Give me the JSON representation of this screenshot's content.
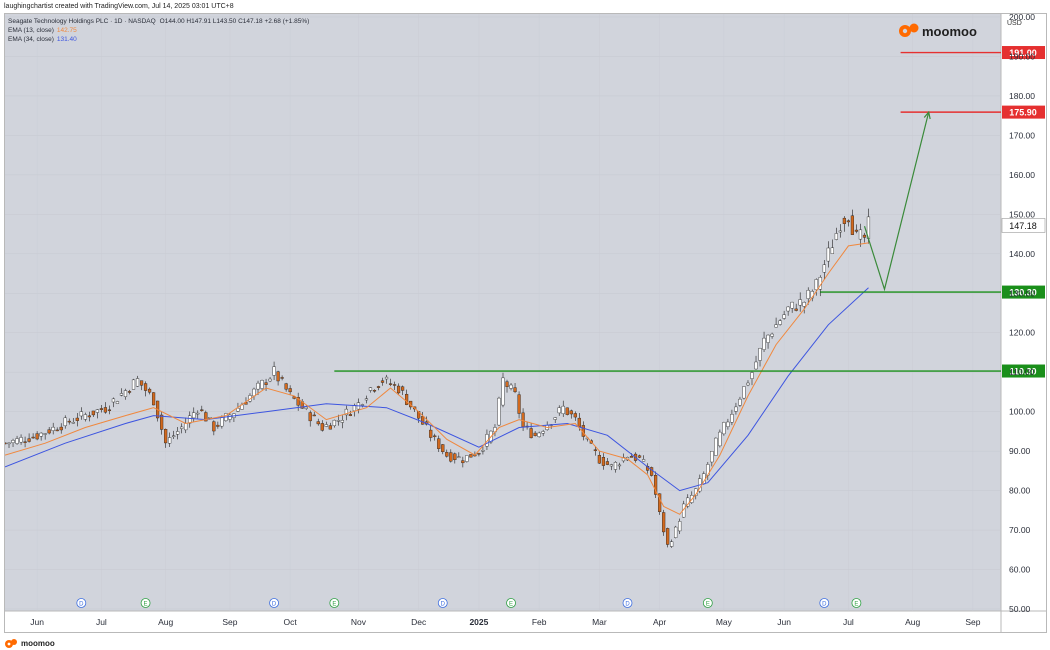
{
  "caption": "laughingchartist created with TradingView.com, Jul 14, 2025 03:01 UTC+8",
  "header": {
    "symbol_line": "Seagate Technology Holdings PLC · 1D · NASDAQ",
    "ohlc": "O144.00  H147.91  L143.50  C147.18  +2.68 (+1.85%)",
    "ema13_label": "EMA (13, close)",
    "ema13_value": "142.75",
    "ema34_label": "EMA (34, close)",
    "ema34_value": "131.40"
  },
  "currency": "USD",
  "brand": "moomoo",
  "bottom_brand": "moomoo",
  "colors": {
    "background": "#d1d4dc",
    "up": "#ffffff",
    "down": "#d2691e",
    "ema13": "#f0883e",
    "ema34": "#3d55e0",
    "support": "#1a8f1a",
    "target": "#e53030",
    "arrow": "#3a8a3a",
    "current_price_bg": "#ffffff"
  },
  "chart_data": {
    "type": "candlestick",
    "ylim": [
      50,
      200
    ],
    "y_ticks": [
      "200.00",
      "190.00",
      "180.00",
      "170.00",
      "160.00",
      "150.00",
      "140.00",
      "130.00",
      "120.00",
      "110.00",
      "100.00",
      "90.00",
      "80.00",
      "70.00",
      "60.00",
      "50.00"
    ],
    "x_ticks": [
      "Jun",
      "Jul",
      "Aug",
      "Sep",
      "Oct",
      "Nov",
      "Dec",
      "2025",
      "Feb",
      "Mar",
      "Apr",
      "May",
      "Jun",
      "Jul",
      "Aug",
      "Sep"
    ],
    "last_price": 147.18,
    "last_price_label": "147.18",
    "levels": [
      {
        "value": 191.0,
        "label": "191.00",
        "kind": "target"
      },
      {
        "value": 175.9,
        "label": "175.90",
        "kind": "target"
      },
      {
        "value": 130.3,
        "label": "130.30",
        "kind": "support"
      },
      {
        "value": 110.3,
        "label": "110.30",
        "kind": "support"
      }
    ],
    "price_path": [
      [
        0,
        92
      ],
      [
        8,
        94
      ],
      [
        17,
        98
      ],
      [
        25,
        101
      ],
      [
        33,
        108
      ],
      [
        37,
        103
      ],
      [
        40,
        92
      ],
      [
        44,
        96
      ],
      [
        48,
        101
      ],
      [
        52,
        96
      ],
      [
        57,
        100
      ],
      [
        62,
        105
      ],
      [
        67,
        110
      ],
      [
        71,
        104
      ],
      [
        75,
        100
      ],
      [
        79,
        96
      ],
      [
        83,
        98
      ],
      [
        88,
        102
      ],
      [
        91,
        106
      ],
      [
        94,
        108
      ],
      [
        98,
        106
      ],
      [
        102,
        100
      ],
      [
        106,
        94
      ],
      [
        110,
        89
      ],
      [
        114,
        88
      ],
      [
        118,
        90
      ],
      [
        122,
        96
      ],
      [
        124,
        108
      ],
      [
        127,
        104
      ],
      [
        129,
        96
      ],
      [
        132,
        94
      ],
      [
        136,
        98
      ],
      [
        139,
        101
      ],
      [
        142,
        98
      ],
      [
        145,
        92
      ],
      [
        148,
        88
      ],
      [
        151,
        86
      ],
      [
        155,
        89
      ],
      [
        158,
        88
      ],
      [
        161,
        84
      ],
      [
        163,
        74
      ],
      [
        165,
        66
      ],
      [
        167,
        70
      ],
      [
        169,
        76
      ],
      [
        172,
        80
      ],
      [
        174,
        84
      ],
      [
        177,
        92
      ],
      [
        180,
        98
      ],
      [
        183,
        104
      ],
      [
        186,
        110
      ],
      [
        189,
        118
      ],
      [
        192,
        122
      ],
      [
        195,
        126
      ],
      [
        199,
        128
      ],
      [
        202,
        132
      ],
      [
        205,
        140
      ],
      [
        208,
        148
      ],
      [
        210,
        150
      ],
      [
        212,
        144
      ],
      [
        214,
        144
      ],
      [
        215,
        147.18
      ]
    ],
    "ema13_path": [
      [
        0,
        89
      ],
      [
        10,
        92
      ],
      [
        20,
        96
      ],
      [
        30,
        99
      ],
      [
        37,
        101
      ],
      [
        45,
        97
      ],
      [
        55,
        99
      ],
      [
        65,
        106
      ],
      [
        72,
        104
      ],
      [
        80,
        98
      ],
      [
        90,
        101
      ],
      [
        96,
        106
      ],
      [
        103,
        100
      ],
      [
        110,
        93
      ],
      [
        117,
        89
      ],
      [
        123,
        96
      ],
      [
        128,
        98
      ],
      [
        135,
        96
      ],
      [
        142,
        97
      ],
      [
        148,
        90
      ],
      [
        155,
        88
      ],
      [
        160,
        84
      ],
      [
        164,
        76
      ],
      [
        168,
        74
      ],
      [
        172,
        79
      ],
      [
        178,
        89
      ],
      [
        185,
        104
      ],
      [
        192,
        117
      ],
      [
        199,
        126
      ],
      [
        205,
        135
      ],
      [
        210,
        142
      ],
      [
        215,
        142.75
      ]
    ],
    "ema34_path": [
      [
        0,
        86
      ],
      [
        15,
        92
      ],
      [
        30,
        97
      ],
      [
        37,
        99
      ],
      [
        50,
        98
      ],
      [
        65,
        100
      ],
      [
        80,
        102
      ],
      [
        95,
        101
      ],
      [
        105,
        97
      ],
      [
        118,
        91
      ],
      [
        128,
        96
      ],
      [
        140,
        97
      ],
      [
        150,
        94
      ],
      [
        160,
        86
      ],
      [
        168,
        80
      ],
      [
        175,
        82
      ],
      [
        185,
        94
      ],
      [
        195,
        109
      ],
      [
        205,
        122
      ],
      [
        215,
        131.4
      ]
    ],
    "forecast_path": [
      [
        214,
        147
      ],
      [
        219,
        131
      ],
      [
        230,
        175.9
      ]
    ],
    "support_line_starts": {
      "130.30": 203,
      "110.30": 82
    },
    "x_tick_days": [
      8,
      24,
      40,
      56,
      71,
      88,
      103,
      118,
      133,
      148,
      163,
      179,
      194,
      210,
      226,
      241
    ],
    "x_total_days": 248,
    "event_markers": [
      {
        "day": 19,
        "label": "D"
      },
      {
        "day": 35,
        "label": "E"
      },
      {
        "day": 67,
        "label": "D"
      },
      {
        "day": 82,
        "label": "E"
      },
      {
        "day": 109,
        "label": "D"
      },
      {
        "day": 126,
        "label": "E"
      },
      {
        "day": 155,
        "label": "D"
      },
      {
        "day": 175,
        "label": "E"
      },
      {
        "day": 204,
        "label": "D"
      },
      {
        "day": 212,
        "label": "E"
      }
    ]
  }
}
